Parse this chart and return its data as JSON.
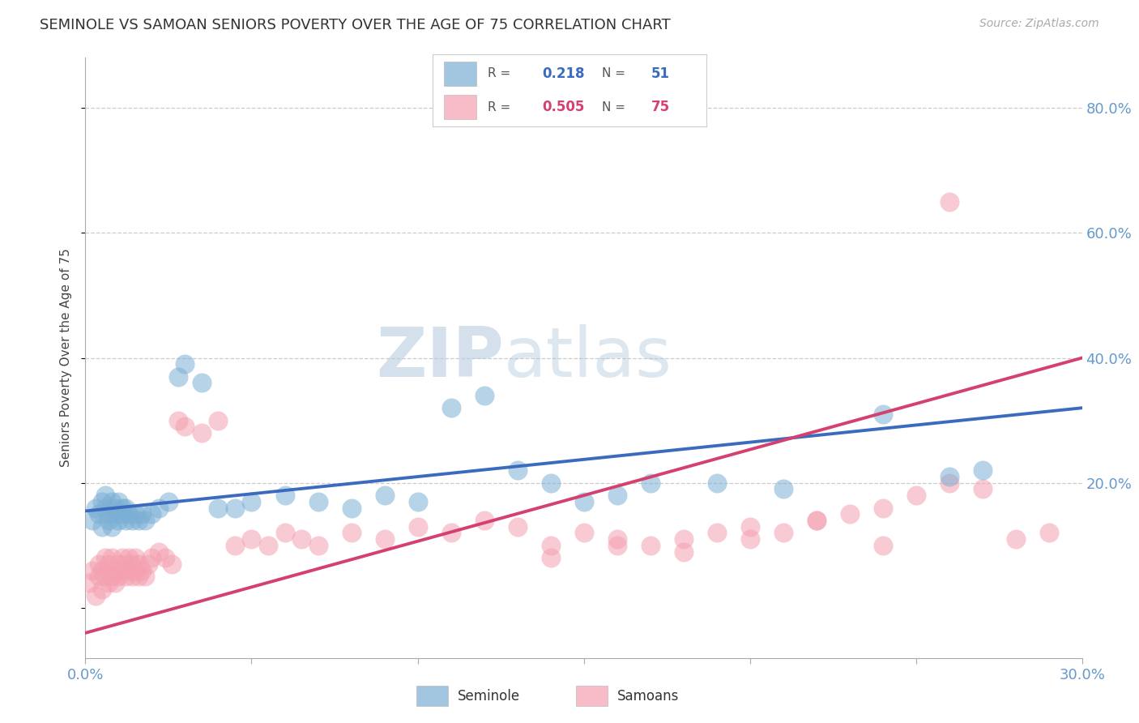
{
  "title": "SEMINOLE VS SAMOAN SENIORS POVERTY OVER THE AGE OF 75 CORRELATION CHART",
  "source": "Source: ZipAtlas.com",
  "ylabel": "Seniors Poverty Over the Age of 75",
  "xlim": [
    0.0,
    0.3
  ],
  "ylim": [
    -0.08,
    0.88
  ],
  "ytick_positions": [
    0.2,
    0.4,
    0.6,
    0.8
  ],
  "ytick_labels": [
    "20.0%",
    "40.0%",
    "60.0%",
    "80.0%"
  ],
  "seminole_R": 0.218,
  "seminole_N": 51,
  "samoan_R": 0.505,
  "samoan_N": 75,
  "seminole_color": "#7bafd4",
  "samoan_color": "#f4a0b0",
  "trend_seminole_color": "#3b6bbf",
  "trend_samoan_color": "#d44070",
  "background_color": "#ffffff",
  "grid_color": "#cccccc",
  "title_color": "#333333",
  "axis_label_color": "#444444",
  "tick_color": "#6699cc",
  "watermark_color": "#ccd9ee",
  "seminole_x": [
    0.002,
    0.003,
    0.004,
    0.005,
    0.005,
    0.006,
    0.006,
    0.007,
    0.007,
    0.008,
    0.008,
    0.009,
    0.009,
    0.01,
    0.01,
    0.011,
    0.011,
    0.012,
    0.012,
    0.013,
    0.014,
    0.015,
    0.016,
    0.017,
    0.018,
    0.02,
    0.022,
    0.025,
    0.028,
    0.03,
    0.035,
    0.04,
    0.045,
    0.05,
    0.06,
    0.07,
    0.08,
    0.09,
    0.1,
    0.11,
    0.12,
    0.13,
    0.14,
    0.15,
    0.16,
    0.17,
    0.19,
    0.21,
    0.24,
    0.26,
    0.27
  ],
  "seminole_y": [
    0.14,
    0.16,
    0.15,
    0.17,
    0.13,
    0.16,
    0.18,
    0.15,
    0.14,
    0.17,
    0.13,
    0.15,
    0.16,
    0.14,
    0.17,
    0.16,
    0.15,
    0.14,
    0.16,
    0.15,
    0.14,
    0.15,
    0.14,
    0.15,
    0.14,
    0.15,
    0.16,
    0.17,
    0.37,
    0.39,
    0.36,
    0.16,
    0.16,
    0.17,
    0.18,
    0.17,
    0.16,
    0.18,
    0.17,
    0.32,
    0.34,
    0.22,
    0.2,
    0.17,
    0.18,
    0.2,
    0.2,
    0.19,
    0.31,
    0.21,
    0.22
  ],
  "samoan_x": [
    0.001,
    0.002,
    0.003,
    0.004,
    0.004,
    0.005,
    0.005,
    0.006,
    0.006,
    0.007,
    0.007,
    0.008,
    0.008,
    0.009,
    0.009,
    0.01,
    0.01,
    0.011,
    0.011,
    0.012,
    0.012,
    0.013,
    0.013,
    0.014,
    0.014,
    0.015,
    0.015,
    0.016,
    0.016,
    0.017,
    0.018,
    0.019,
    0.02,
    0.022,
    0.024,
    0.026,
    0.028,
    0.03,
    0.035,
    0.04,
    0.045,
    0.05,
    0.055,
    0.06,
    0.065,
    0.07,
    0.08,
    0.09,
    0.1,
    0.11,
    0.12,
    0.13,
    0.14,
    0.15,
    0.16,
    0.17,
    0.18,
    0.19,
    0.2,
    0.21,
    0.22,
    0.23,
    0.24,
    0.25,
    0.26,
    0.27,
    0.28,
    0.29,
    0.14,
    0.16,
    0.18,
    0.2,
    0.22,
    0.24,
    0.26
  ],
  "samoan_y": [
    0.04,
    0.06,
    0.02,
    0.05,
    0.07,
    0.03,
    0.06,
    0.05,
    0.08,
    0.04,
    0.07,
    0.05,
    0.08,
    0.06,
    0.04,
    0.07,
    0.05,
    0.08,
    0.06,
    0.07,
    0.05,
    0.08,
    0.06,
    0.07,
    0.05,
    0.06,
    0.08,
    0.07,
    0.05,
    0.06,
    0.05,
    0.07,
    0.08,
    0.09,
    0.08,
    0.07,
    0.3,
    0.29,
    0.28,
    0.3,
    0.1,
    0.11,
    0.1,
    0.12,
    0.11,
    0.1,
    0.12,
    0.11,
    0.13,
    0.12,
    0.14,
    0.13,
    0.1,
    0.12,
    0.11,
    0.1,
    0.11,
    0.12,
    0.13,
    0.12,
    0.14,
    0.15,
    0.16,
    0.18,
    0.2,
    0.19,
    0.11,
    0.12,
    0.08,
    0.1,
    0.09,
    0.11,
    0.14,
    0.1,
    0.65
  ]
}
